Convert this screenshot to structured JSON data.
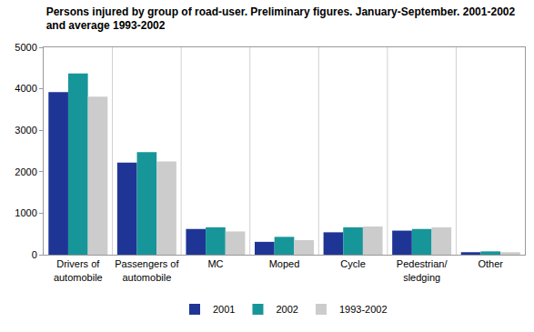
{
  "chart_data": {
    "type": "bar",
    "title": [
      "Persons injured by group of road-user. Preliminary figures. January-September. 2001-2002",
      "and average 1993-2002"
    ],
    "categories": [
      "Drivers of\nautomobile",
      "Passengers of\nautomobile",
      "MC",
      "Moped",
      "Cycle",
      "Pedestrian/\nsledging",
      "Other"
    ],
    "series": [
      {
        "name": "2001",
        "color": "#1f3596",
        "values": [
          3920,
          2220,
          620,
          310,
          540,
          580,
          60
        ]
      },
      {
        "name": "2002",
        "color": "#17969a",
        "values": [
          4370,
          2470,
          660,
          430,
          660,
          620,
          80
        ]
      },
      {
        "name": "1993-2002",
        "color": "#cccccc",
        "values": [
          3810,
          2250,
          560,
          350,
          680,
          660,
          60
        ]
      }
    ],
    "ylim": [
      0,
      5000
    ],
    "yticks": [
      0,
      1000,
      2000,
      3000,
      4000,
      5000
    ],
    "grid": false,
    "legend": "bottom"
  }
}
